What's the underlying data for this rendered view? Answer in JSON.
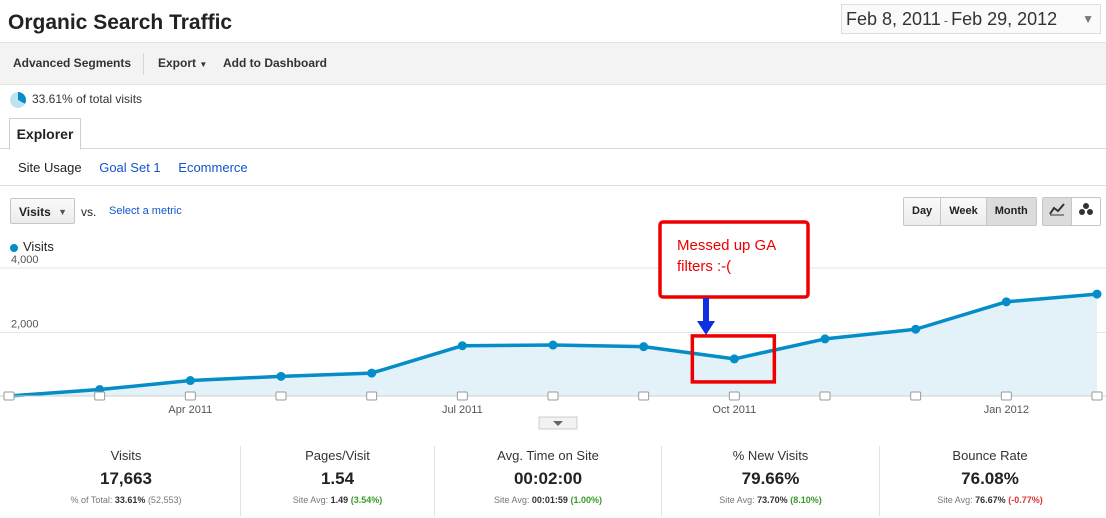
{
  "header": {
    "title": "Organic Search Traffic",
    "date_start": "Feb 8, 2011",
    "date_sep": "-",
    "date_end": "Feb 29, 2012"
  },
  "toolbar": {
    "advanced_segments": "Advanced Segments",
    "export": "Export",
    "add_to_dashboard": "Add to Dashboard"
  },
  "segment": {
    "pct_text": "33.61% of total visits"
  },
  "tabs": {
    "explorer": "Explorer"
  },
  "subtabs": [
    "Site Usage",
    "Goal Set 1",
    "Ecommerce"
  ],
  "controls": {
    "metric": "Visits",
    "vs": "vs.",
    "select_metric": "Select a metric",
    "periods": [
      "Day",
      "Week",
      "Month"
    ]
  },
  "chart_data": {
    "type": "area",
    "legend": "Visits",
    "y_ticks": [
      "4,000",
      "2,000"
    ],
    "ylim": [
      0,
      4000
    ],
    "x_labels": [
      "Apr 2011",
      "Jul 2011",
      "Oct 2011",
      "Jan 2012"
    ],
    "x": [
      "Feb 2011",
      "Mar 2011",
      "Apr 2011",
      "May 2011",
      "Jun 2011",
      "Jul 2011",
      "Aug 2011",
      "Sep 2011",
      "Oct 2011",
      "Nov 2011",
      "Dec 2011",
      "Jan 2012",
      "Feb 2012"
    ],
    "values": [
      0,
      200,
      480,
      610,
      710,
      1560,
      1580,
      1530,
      1150,
      1770,
      2070,
      2920,
      3160
    ],
    "color": "#058dc7",
    "annotation": {
      "text_line1": "Messed up GA",
      "text_line2": "filters :-(",
      "target": "Oct 2011"
    }
  },
  "scorecards": [
    {
      "label": "Visits",
      "value": "17,663",
      "sub_label": "% of Total:",
      "sub_value": "33.61%",
      "sub_extra": "(52,553)",
      "extra_class": ""
    },
    {
      "label": "Pages/Visit",
      "value": "1.54",
      "sub_label": "Site Avg:",
      "sub_value": "1.49",
      "sub_extra": "(3.54%)",
      "extra_class": "pos"
    },
    {
      "label": "Avg. Time on Site",
      "value": "00:02:00",
      "sub_label": "Site Avg:",
      "sub_value": "00:01:59",
      "sub_extra": "(1.00%)",
      "extra_class": "pos"
    },
    {
      "label": "% New Visits",
      "value": "79.66%",
      "sub_label": "Site Avg:",
      "sub_value": "73.70%",
      "sub_extra": "(8.10%)",
      "extra_class": "pos"
    },
    {
      "label": "Bounce Rate",
      "value": "76.08%",
      "sub_label": "Site Avg:",
      "sub_value": "76.67%",
      "sub_extra": "(-0.77%)",
      "extra_class": "neg"
    }
  ]
}
